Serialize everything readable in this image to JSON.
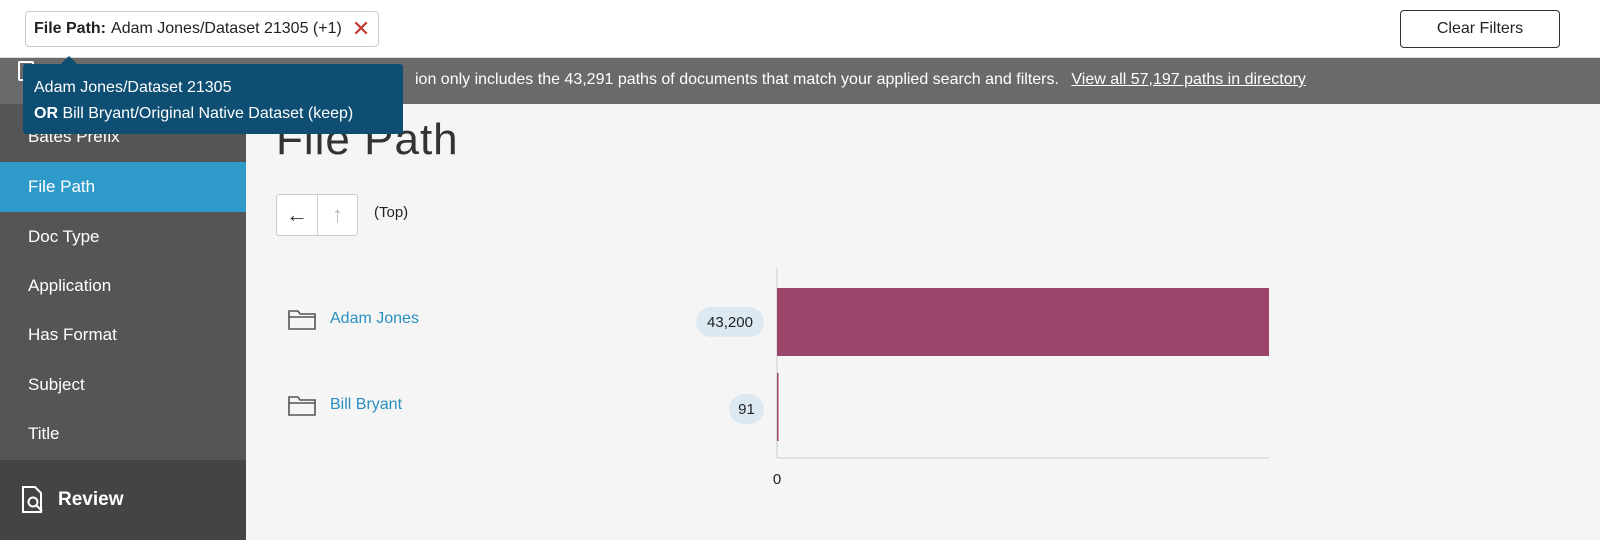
{
  "filter": {
    "label": "File Path:",
    "value": "Adam Jones/Dataset 21305 (+1)",
    "remove_glyph": "✕"
  },
  "clear_filters_label": "Clear Filters",
  "banner": {
    "text": "ion only includes the 43,291 paths of documents that match your applied search and filters.",
    "link": "View all 57,197 paths in directory"
  },
  "tooltip": {
    "line1": "Adam Jones/Dataset 21305",
    "line2_op": "OR",
    "line2_rest": " Bill Bryant/Original Native Dataset (keep)"
  },
  "sidebar": {
    "items": [
      {
        "label": "Bates Prefix",
        "active": false
      },
      {
        "label": "File Path",
        "active": true
      },
      {
        "label": "Doc Type",
        "active": false
      },
      {
        "label": "Application",
        "active": false
      },
      {
        "label": "Has Format",
        "active": false
      },
      {
        "label": "Subject",
        "active": false
      },
      {
        "label": "Title",
        "active": false
      }
    ],
    "review_label": "Review"
  },
  "main": {
    "title": "File Path",
    "breadcrumb": "(Top)",
    "back_glyph": "←",
    "up_glyph": "↑"
  },
  "colors": {
    "accent": "#2e9ac9",
    "bar": "#9b456b",
    "tooltip": "#0f4e73",
    "link": "#2a8fc0"
  },
  "chart_data": {
    "type": "bar",
    "orientation": "horizontal",
    "categories": [
      "Adam Jones",
      "Bill Bryant"
    ],
    "values": [
      43200,
      91
    ],
    "value_labels": [
      "43,200",
      "91"
    ],
    "tick_labels": [
      "0"
    ],
    "xlim": [
      0,
      43200
    ]
  }
}
